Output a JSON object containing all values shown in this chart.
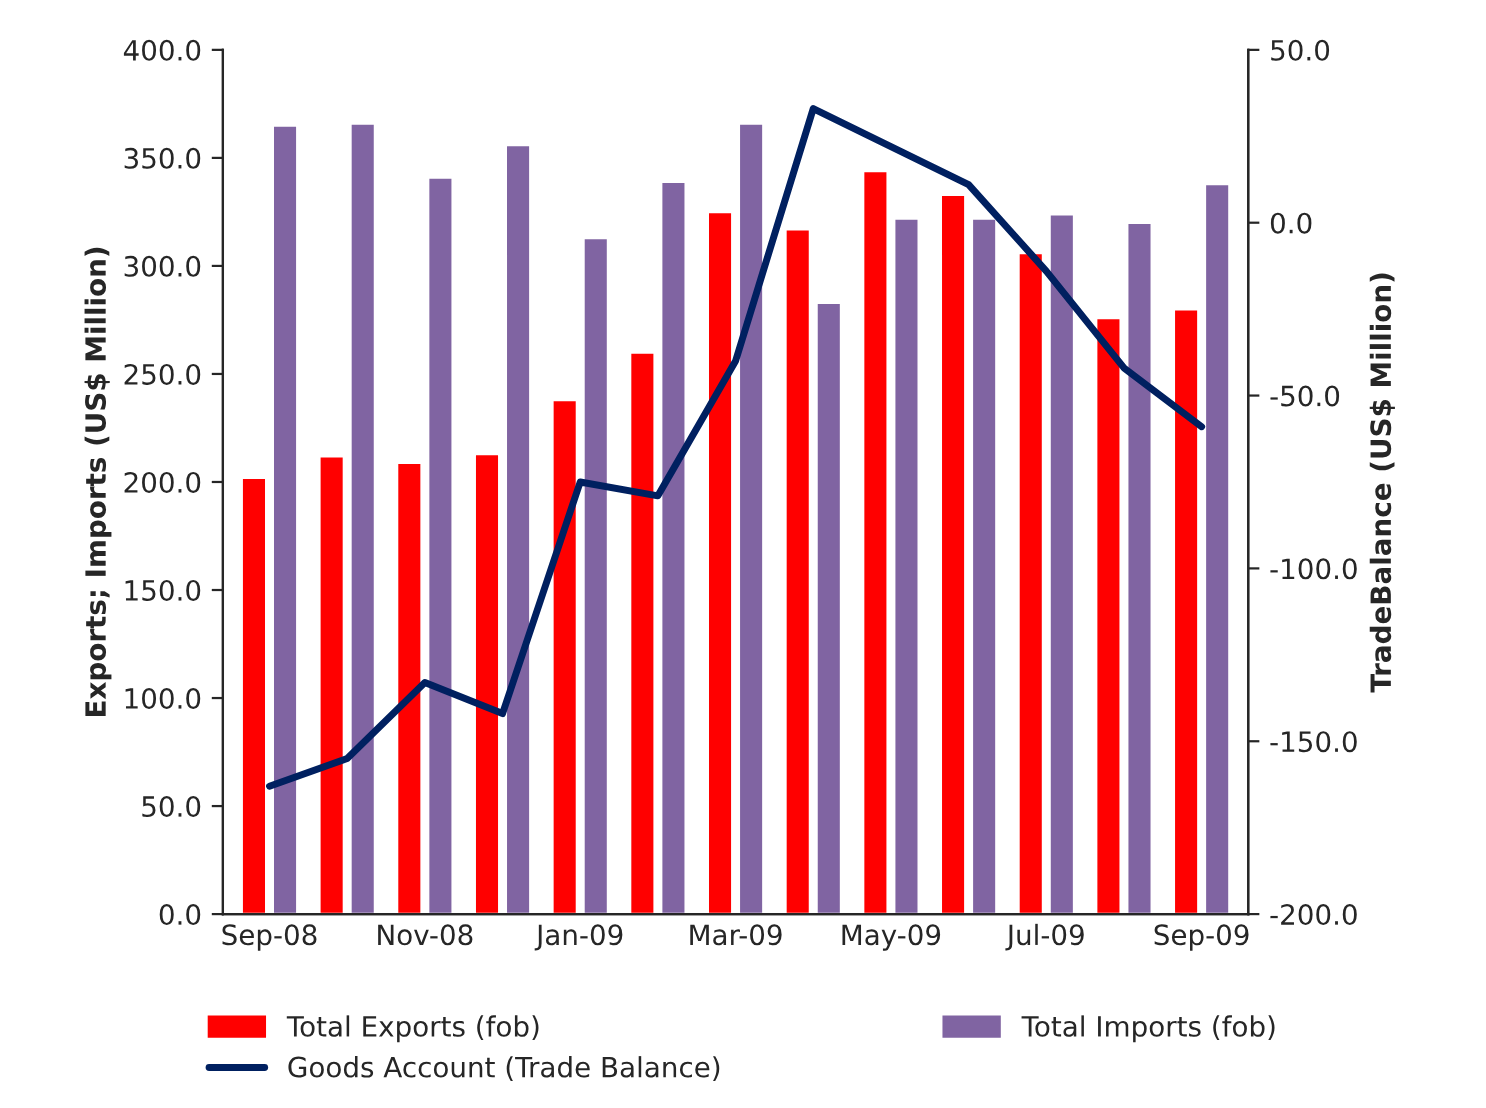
{
  "chart_data": {
    "type": "bar",
    "ylabel": "Exports; Imports (US$ Million)",
    "y2label": "TradeBalance (US$ Million)",
    "categories": [
      "Sep-08",
      null,
      "Nov-08",
      null,
      "Jan-09",
      null,
      "Mar-09",
      null,
      "May-09",
      null,
      "Jul-09",
      null,
      "Sep-09"
    ],
    "series": [
      {
        "name": "Total Exports (fob)",
        "color": "#ff0000",
        "values": [
          202,
          212,
          209,
          213,
          238,
          260,
          325,
          317,
          344,
          333,
          306,
          276,
          280
        ]
      },
      {
        "name": "Total Imports (fob)",
        "color": "#8064a2",
        "values": [
          365,
          366,
          341,
          356,
          313,
          339,
          366,
          283,
          322,
          322,
          324,
          320,
          338
        ]
      },
      {
        "name": "Goods Account (Trade Balance)",
        "type": "line",
        "axis": "y2",
        "color": "#002060",
        "values": [
          -163,
          -155,
          -133,
          -142,
          -75,
          -79,
          -40,
          33,
          22,
          11,
          -14,
          -42,
          -59
        ]
      }
    ],
    "ylim": [
      0,
      400
    ],
    "yticks": [
      {
        "value": 0,
        "label": "0.0"
      },
      {
        "value": 50,
        "label": "50.0"
      },
      {
        "value": 100,
        "label": "100.0"
      },
      {
        "value": 150,
        "label": "150.0"
      },
      {
        "value": 200,
        "label": "200.0"
      },
      {
        "value": 250,
        "label": "250.0"
      },
      {
        "value": 300,
        "label": "300.0"
      },
      {
        "value": 350,
        "label": "350.0"
      },
      {
        "value": 400,
        "label": "400.0"
      }
    ],
    "y2lim": [
      -200,
      50
    ],
    "y2ticks": [
      {
        "value": -200,
        "label": "-200.0"
      },
      {
        "value": -150,
        "label": "-150.0"
      },
      {
        "value": -100,
        "label": "-100.0"
      },
      {
        "value": -50,
        "label": "-50.0"
      },
      {
        "value": 0,
        "label": "0.0"
      },
      {
        "value": 50,
        "label": "50.0"
      }
    ],
    "legend": "bottom",
    "grid": false
  }
}
